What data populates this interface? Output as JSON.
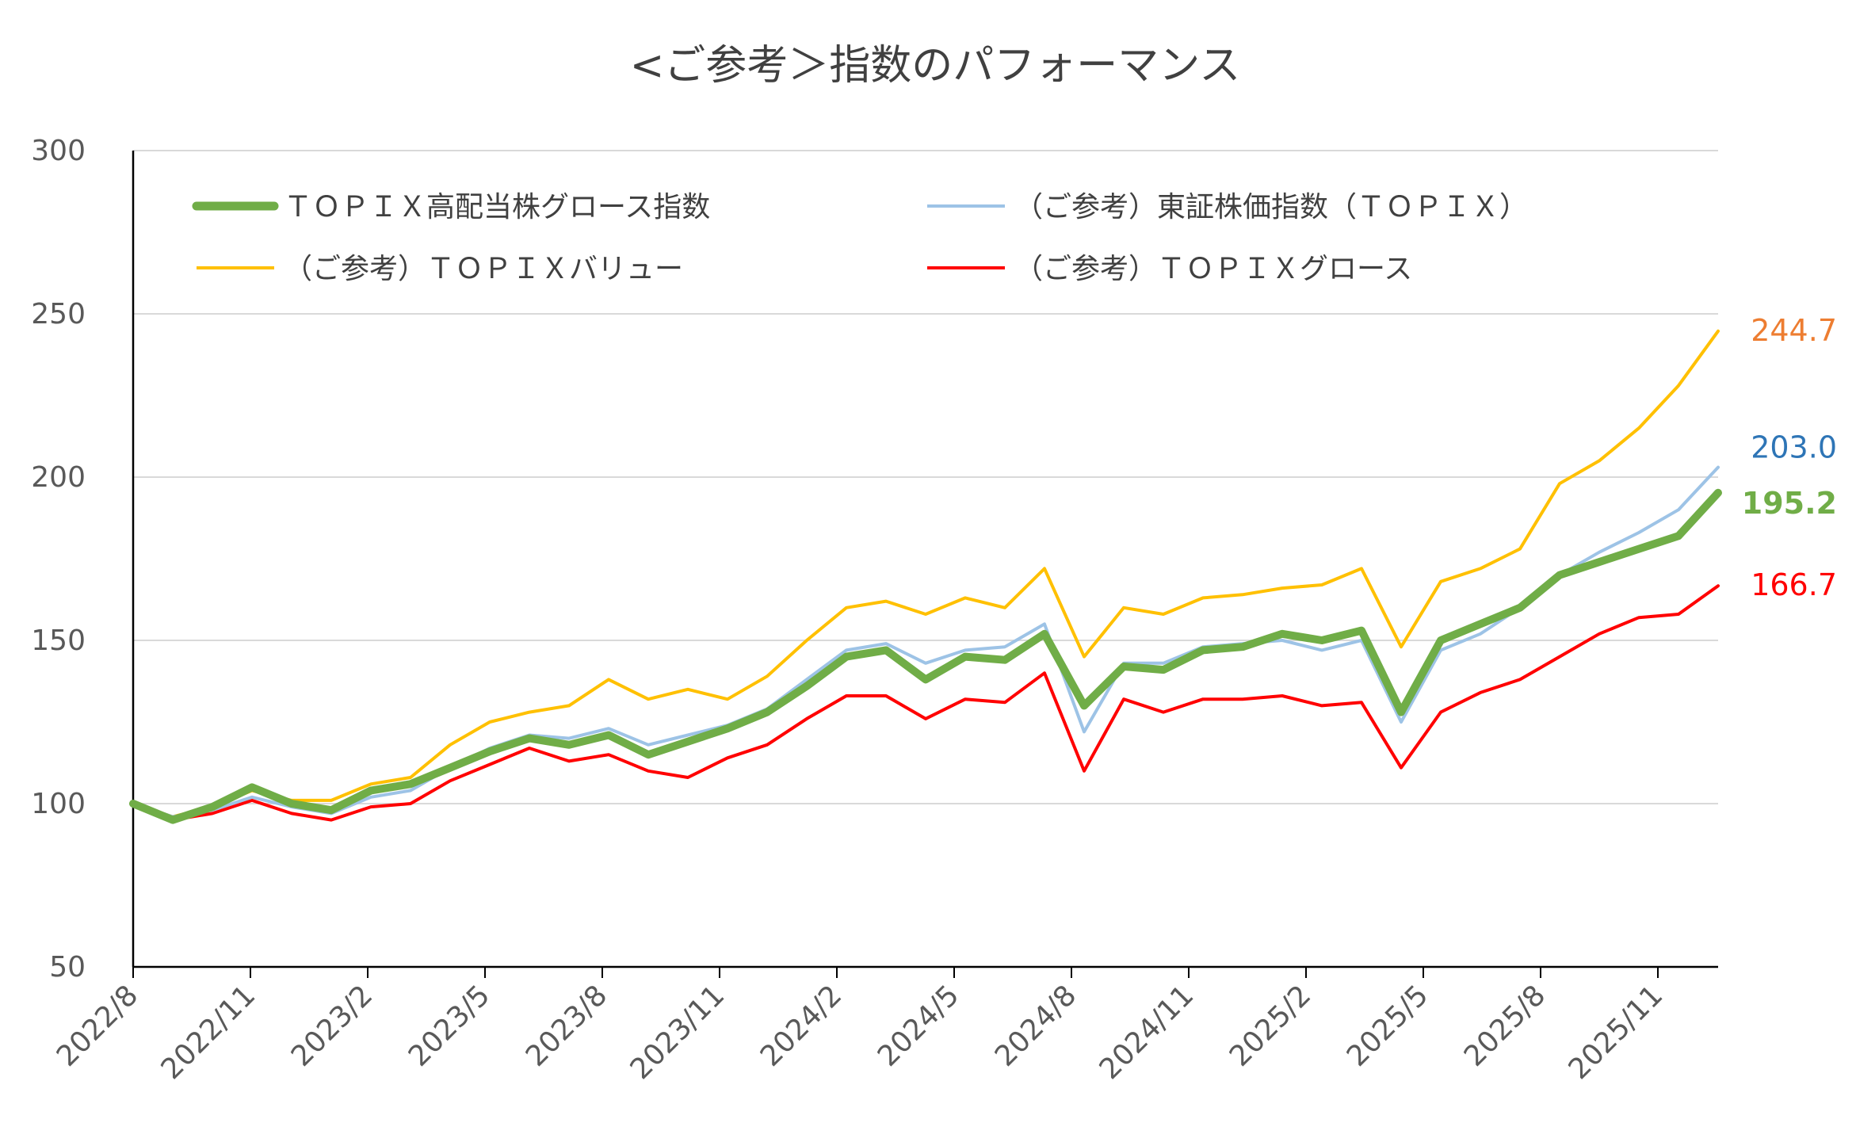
{
  "chart_data": {
    "type": "line",
    "title": "<ご参考＞指数のパフォーマンス",
    "xlabel": "",
    "ylabel": "",
    "ylim": [
      50,
      300
    ],
    "yticks": [
      50,
      100,
      150,
      200,
      250,
      300
    ],
    "grid": true,
    "legend_position": "top-left",
    "x_tick_labels": [
      "2022/8",
      "2022/11",
      "2023/2",
      "2023/5",
      "2023/8",
      "2023/11",
      "2024/2",
      "2024/5",
      "2024/8",
      "2024/11",
      "2025/2",
      "2025/5",
      "2025/8",
      "2025/11"
    ],
    "x": [
      "2022/8",
      "2022/9",
      "2022/10",
      "2022/11",
      "2022/12",
      "2023/1",
      "2023/2",
      "2023/3",
      "2023/4",
      "2023/5",
      "2023/6",
      "2023/7",
      "2023/8",
      "2023/9",
      "2023/10",
      "2023/11",
      "2023/12",
      "2024/1",
      "2024/2",
      "2024/3",
      "2024/4",
      "2024/5",
      "2024/6",
      "2024/7",
      "2024/8",
      "2024/9",
      "2024/10",
      "2024/11",
      "2024/12",
      "2025/1",
      "2025/2",
      "2025/3",
      "2025/4",
      "2025/5",
      "2025/6",
      "2025/7",
      "2025/8",
      "2025/9",
      "2025/10",
      "2025/11",
      "2025/12"
    ],
    "series": [
      {
        "name": "ＴＯＰＩＸ高配当株グロース指数",
        "color": "#70AD47",
        "end_value": "195.2",
        "values": [
          100,
          95,
          99,
          105,
          100,
          98,
          104,
          106,
          111,
          116,
          120,
          118,
          121,
          115,
          119,
          123,
          128,
          136,
          145,
          147,
          138,
          145,
          144,
          152,
          130,
          142,
          141,
          147,
          148,
          152,
          150,
          153,
          128,
          150,
          155,
          160,
          170,
          174,
          178,
          182,
          195.2
        ]
      },
      {
        "name": "（ご参考）東証株価指数（ＴＯＰＩＸ）",
        "color": "#9DC3E6",
        "end_value": "203.0",
        "values": [
          100,
          96,
          98,
          102,
          99,
          97,
          102,
          104,
          111,
          117,
          121,
          120,
          123,
          118,
          121,
          124,
          129,
          138,
          147,
          149,
          143,
          147,
          148,
          155,
          122,
          143,
          143,
          148,
          149,
          150,
          147,
          150,
          125,
          147,
          152,
          160,
          170,
          177,
          183,
          190,
          203.0
        ]
      },
      {
        "name": "（ご参考）ＴＯＰＩＸバリュー",
        "color": "#FFC000",
        "end_value": "244.7",
        "values": [
          100,
          96,
          99,
          104,
          101,
          101,
          106,
          108,
          118,
          125,
          128,
          130,
          138,
          132,
          135,
          132,
          139,
          150,
          160,
          162,
          158,
          163,
          160,
          172,
          145,
          160,
          158,
          163,
          164,
          166,
          167,
          172,
          148,
          168,
          172,
          178,
          198,
          205,
          215,
          228,
          244.7
        ]
      },
      {
        "name": "（ご参考）ＴＯＰＩＸグロース",
        "color": "#FF0000",
        "end_value": "166.7",
        "values": [
          100,
          95,
          97,
          101,
          97,
          95,
          99,
          100,
          107,
          112,
          117,
          113,
          115,
          110,
          108,
          114,
          118,
          126,
          133,
          133,
          126,
          132,
          131,
          140,
          110,
          132,
          128,
          132,
          132,
          133,
          130,
          131,
          111,
          128,
          134,
          138,
          145,
          152,
          157,
          158,
          166.7
        ]
      }
    ],
    "end_label_colors": {
      "ＴＯＰＩＸ高配当株グロース指数": "#70AD47",
      "（ご参考）東証株価指数（ＴＯＰＩＸ）": "#2E75B6",
      "（ご参考）ＴＯＰＩＸバリュー": "#ED7D31",
      "（ご参考）ＴＯＰＩＸグロース": "#FF0000"
    }
  }
}
